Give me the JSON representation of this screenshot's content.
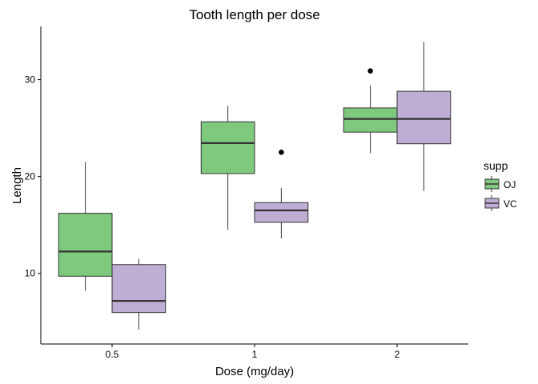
{
  "chart_data": {
    "type": "boxplot",
    "title": "Tooth length  per dose",
    "xlabel": "Dose (mg/day)",
    "ylabel": "Length",
    "categories": [
      "0.5",
      "1",
      "2"
    ],
    "ylim": [
      2.7,
      35.5
    ],
    "yticks": [
      10,
      20,
      30
    ],
    "grid": false,
    "legend": {
      "title": "supp",
      "position": "right"
    },
    "series": [
      {
        "name": "OJ",
        "color": "#7fc97f",
        "boxes": [
          {
            "min": 8.2,
            "q1": 9.7,
            "median": 12.25,
            "q3": 16.2,
            "max": 21.5,
            "outliers": []
          },
          {
            "min": 14.5,
            "q1": 20.3,
            "median": 23.45,
            "q3": 25.65,
            "max": 27.3,
            "outliers": []
          },
          {
            "min": 22.4,
            "q1": 24.58,
            "median": 25.95,
            "q3": 27.08,
            "max": 29.4,
            "outliers": [
              30.9
            ]
          }
        ]
      },
      {
        "name": "VC",
        "color": "#beaed4",
        "boxes": [
          {
            "min": 4.2,
            "q1": 5.95,
            "median": 7.15,
            "q3": 10.9,
            "max": 11.5,
            "outliers": []
          },
          {
            "min": 13.6,
            "q1": 15.27,
            "median": 16.5,
            "q3": 17.3,
            "max": 18.8,
            "outliers": [
              22.5
            ]
          },
          {
            "min": 18.5,
            "q1": 23.38,
            "median": 25.95,
            "q3": 28.8,
            "max": 33.9,
            "outliers": []
          }
        ]
      }
    ]
  }
}
